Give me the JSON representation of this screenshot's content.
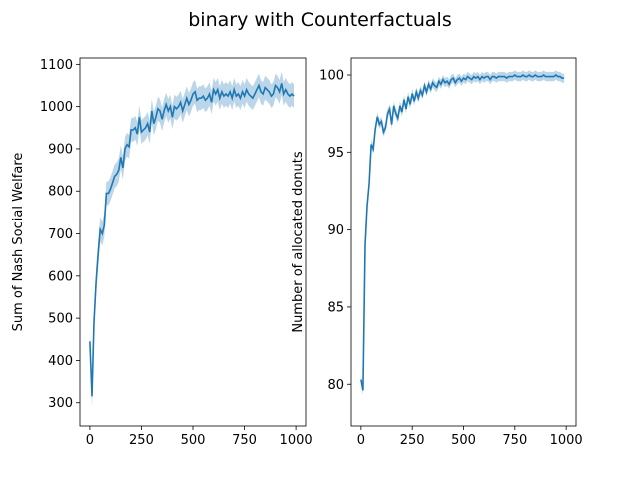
{
  "title": "binary with Counterfactuals",
  "chart_data": [
    {
      "type": "line",
      "ylabel": "Sum of Nash Social Welfare",
      "xlabel": "",
      "xlim": [
        -48,
        1048
      ],
      "ylim": [
        245,
        1115
      ],
      "xticks": [
        0,
        250,
        500,
        750,
        1000
      ],
      "yticks": [
        300,
        400,
        500,
        600,
        700,
        800,
        900,
        1000,
        1100
      ],
      "line_color": "#1f77b4",
      "band_color": "#1f77b4",
      "grid": false,
      "x": [
        0,
        10,
        20,
        30,
        40,
        50,
        60,
        70,
        80,
        90,
        100,
        110,
        120,
        130,
        140,
        150,
        160,
        170,
        180,
        190,
        200,
        210,
        220,
        230,
        240,
        250,
        260,
        270,
        280,
        290,
        300,
        310,
        320,
        330,
        340,
        350,
        360,
        370,
        380,
        390,
        400,
        410,
        420,
        430,
        440,
        450,
        460,
        470,
        480,
        490,
        500,
        510,
        520,
        530,
        540,
        550,
        560,
        570,
        580,
        590,
        600,
        610,
        620,
        630,
        640,
        650,
        660,
        670,
        680,
        690,
        700,
        710,
        720,
        730,
        740,
        750,
        760,
        770,
        780,
        790,
        800,
        810,
        820,
        830,
        840,
        850,
        860,
        870,
        880,
        890,
        900,
        910,
        920,
        930,
        940,
        950,
        960,
        970,
        980,
        990
      ],
      "y": [
        445,
        315,
        490,
        585,
        650,
        710,
        700,
        720,
        795,
        795,
        805,
        820,
        835,
        840,
        850,
        880,
        855,
        900,
        910,
        905,
        945,
        945,
        950,
        935,
        975,
        940,
        945,
        950,
        960,
        940,
        990,
        960,
        975,
        995,
        990,
        970,
        990,
        1005,
        990,
        1000,
        975,
        1000,
        995,
        1000,
        1010,
        990,
        1005,
        1020,
        1005,
        1015,
        1030,
        1035,
        1015,
        1020,
        1020,
        1025,
        1015,
        1020,
        1030,
        1010,
        1040,
        1030,
        1040,
        1020,
        1035,
        1025,
        1030,
        1025,
        1035,
        1020,
        1040,
        1025,
        1030,
        1020,
        1035,
        1025,
        1040,
        1030,
        1025,
        1020,
        1030,
        1040,
        1050,
        1035,
        1030,
        1045,
        1040,
        1035,
        1025,
        1030,
        1050,
        1045,
        1035,
        1055,
        1030,
        1040,
        1030,
        1025,
        1030,
        1025
      ],
      "band": 28
    },
    {
      "type": "line",
      "ylabel": "Number of allocated donuts",
      "xlabel": "",
      "xlim": [
        -48,
        1048
      ],
      "ylim": [
        77.3,
        101.1
      ],
      "xticks": [
        0,
        250,
        500,
        750,
        1000
      ],
      "yticks": [
        80,
        85,
        90,
        95,
        100
      ],
      "line_color": "#1f77b4",
      "band_color": "#1f77b4",
      "grid": false,
      "x": [
        0,
        10,
        20,
        30,
        40,
        50,
        60,
        70,
        80,
        90,
        100,
        110,
        120,
        130,
        140,
        150,
        160,
        170,
        180,
        190,
        200,
        210,
        220,
        230,
        240,
        250,
        260,
        270,
        280,
        290,
        300,
        310,
        320,
        330,
        340,
        350,
        360,
        370,
        380,
        390,
        400,
        410,
        420,
        430,
        440,
        450,
        460,
        470,
        480,
        490,
        500,
        510,
        520,
        530,
        540,
        550,
        560,
        570,
        580,
        590,
        600,
        610,
        620,
        630,
        640,
        650,
        660,
        670,
        680,
        690,
        700,
        710,
        720,
        730,
        740,
        750,
        760,
        770,
        780,
        790,
        800,
        810,
        820,
        830,
        840,
        850,
        860,
        870,
        880,
        890,
        900,
        910,
        920,
        930,
        940,
        950,
        960,
        970,
        980,
        990
      ],
      "y": [
        80.3,
        79.6,
        89.0,
        91.5,
        93.0,
        95.5,
        95.2,
        96.5,
        97.3,
        96.8,
        97.0,
        96.3,
        96.6,
        97.5,
        97.8,
        96.8,
        98.0,
        97.5,
        97.2,
        98.0,
        97.6,
        98.4,
        97.8,
        98.6,
        98.1,
        98.8,
        98.3,
        98.9,
        98.5,
        99.0,
        98.7,
        99.3,
        98.9,
        99.4,
        99.1,
        99.5,
        99.3,
        99.2,
        99.6,
        99.4,
        99.7,
        99.5,
        99.6,
        99.4,
        99.7,
        99.8,
        99.5,
        99.7,
        99.8,
        99.6,
        99.8,
        99.7,
        99.9,
        99.8,
        99.7,
        99.9,
        99.8,
        99.9,
        99.7,
        99.9,
        99.8,
        99.9,
        99.9,
        99.7,
        99.9,
        99.9,
        99.8,
        99.9,
        99.9,
        99.9,
        99.9,
        99.8,
        99.9,
        99.9,
        99.9,
        100.0,
        99.9,
        99.9,
        99.9,
        100.0,
        99.9,
        99.9,
        100.0,
        99.9,
        99.9,
        100.0,
        99.9,
        99.9,
        99.9,
        100.0,
        99.9,
        99.9,
        99.9,
        99.9,
        99.9,
        100.0,
        99.9,
        99.9,
        99.8,
        99.8
      ],
      "band": 0.3
    }
  ]
}
